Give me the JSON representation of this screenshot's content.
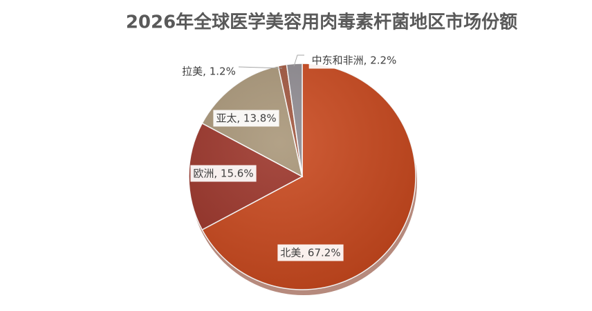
{
  "chart_data": {
    "type": "pie",
    "title": "2026年全球医学美容用肉毒素杆菌地区市场份额",
    "categories": [
      "北美",
      "欧洲",
      "亚太",
      "拉美",
      "中东和非洲"
    ],
    "values": [
      67.2,
      15.6,
      13.8,
      1.2,
      2.2
    ],
    "value_labels": [
      "北美, 67.2%",
      "欧洲, 15.6%",
      "亚太, 13.8%",
      "拉美, 1.2%",
      "中东和非洲, 2.2%"
    ],
    "colors": [
      "#c9471c",
      "#9b3328",
      "#a89577",
      "#a0553d",
      "#8e8a90"
    ]
  }
}
